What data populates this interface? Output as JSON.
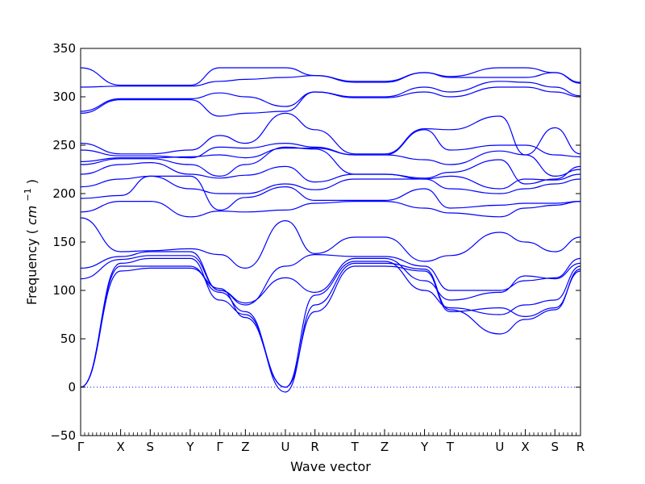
{
  "chart_data": {
    "type": "line",
    "xlabel": "Wave vector",
    "ylabel": "Frequency",
    "ylabel_unit": "cm",
    "ylabel_unit_power": "−1",
    "ylim": [
      -50,
      350
    ],
    "yticks": [
      -50,
      0,
      50,
      100,
      150,
      200,
      250,
      300,
      350
    ],
    "high_symmetry_points": [
      {
        "label": "Γ",
        "x": 0.0
      },
      {
        "label": "X",
        "x": 0.5
      },
      {
        "label": "S",
        "x": 0.87
      },
      {
        "label": "Y",
        "x": 1.37
      },
      {
        "label": "Γ",
        "x": 1.74
      },
      {
        "label": "Z",
        "x": 2.06
      },
      {
        "label": "U",
        "x": 2.56
      },
      {
        "label": "R",
        "x": 2.93
      },
      {
        "label": "T",
        "x": 3.43
      },
      {
        "label": "Z",
        "x": 3.8
      },
      {
        "label": "Y",
        "x": 4.3
      },
      {
        "label": "T",
        "x": 4.62
      },
      {
        "label": "U",
        "x": 5.24
      },
      {
        "label": "X",
        "x": 5.56
      },
      {
        "label": "S",
        "x": 5.93
      },
      {
        "label": "R",
        "x": 6.25
      }
    ],
    "zero_line": {
      "y": 0,
      "style": "dotted",
      "color": "#0000ff"
    },
    "line_color": "#0000ff",
    "branch_count": 18,
    "branches": [
      [
        0,
        120,
        123,
        123,
        102,
        72,
        0,
        78,
        125,
        125,
        120,
        78,
        82,
        73,
        82,
        120,
        122,
        125
      ],
      [
        0,
        125,
        125,
        125,
        98,
        78,
        -5,
        85,
        128,
        128,
        122,
        80,
        55,
        70,
        80,
        122,
        124,
        126
      ],
      [
        0,
        128,
        133,
        133,
        90,
        75,
        0,
        95,
        130,
        130,
        100,
        82,
        75,
        85,
        90,
        125,
        125,
        127
      ],
      [
        112,
        132,
        136,
        136,
        100,
        87,
        113,
        98,
        133,
        133,
        110,
        90,
        98,
        115,
        112,
        128,
        130,
        130
      ],
      [
        123,
        135,
        140,
        140,
        100,
        85,
        125,
        137,
        135,
        135,
        125,
        100,
        100,
        110,
        113,
        133,
        134,
        134
      ],
      [
        175,
        140,
        141,
        143,
        137,
        123,
        172,
        138,
        155,
        155,
        130,
        136,
        160,
        150,
        140,
        155,
        140,
        155
      ],
      [
        181,
        192,
        192,
        176,
        182,
        181,
        183,
        190,
        192,
        192,
        185,
        180,
        176,
        185,
        188,
        192,
        192,
        192
      ],
      [
        195,
        198,
        218,
        218,
        183,
        196,
        207,
        193,
        193,
        193,
        205,
        185,
        188,
        190,
        190,
        192,
        192,
        193
      ],
      [
        207,
        215,
        218,
        205,
        200,
        200,
        210,
        204,
        215,
        215,
        215,
        205,
        200,
        205,
        210,
        215,
        216,
        216
      ],
      [
        220,
        230,
        232,
        220,
        216,
        219,
        228,
        212,
        220,
        220,
        215,
        218,
        205,
        215,
        214,
        220,
        217,
        218
      ],
      [
        230,
        236,
        236,
        230,
        218,
        230,
        248,
        246,
        220,
        220,
        216,
        222,
        235,
        210,
        215,
        228,
        232,
        222
      ],
      [
        233,
        237,
        237,
        238,
        240,
        237,
        247,
        247,
        240,
        240,
        235,
        230,
        244,
        240,
        218,
        225,
        237,
        225
      ],
      [
        245,
        239,
        239,
        237,
        248,
        247,
        252,
        248,
        240,
        240,
        266,
        245,
        250,
        250,
        240,
        238,
        240,
        240
      ],
      [
        252,
        241,
        241,
        245,
        260,
        252,
        283,
        266,
        241,
        241,
        267,
        266,
        280,
        240,
        268,
        241,
        241,
        241
      ],
      [
        283,
        297,
        297,
        297,
        280,
        283,
        285,
        305,
        299,
        299,
        305,
        300,
        310,
        310,
        305,
        300,
        298,
        299
      ],
      [
        285,
        298,
        298,
        298,
        304,
        300,
        290,
        305,
        300,
        300,
        310,
        305,
        316,
        315,
        310,
        301,
        299,
        300
      ],
      [
        310,
        311,
        311,
        311,
        316,
        318,
        320,
        322,
        315,
        315,
        325,
        320,
        320,
        320,
        325,
        314,
        311,
        315
      ],
      [
        330,
        312,
        312,
        312,
        330,
        330,
        330,
        322,
        316,
        316,
        325,
        321,
        330,
        330,
        325,
        315,
        312,
        316
      ]
    ]
  }
}
